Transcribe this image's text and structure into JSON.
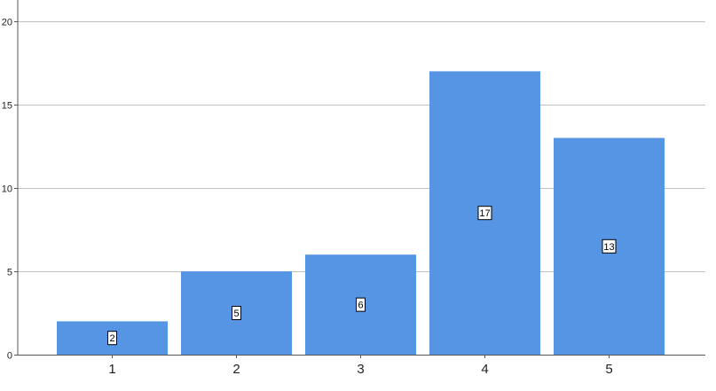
{
  "chart_data": {
    "type": "bar",
    "categories": [
      "1",
      "2",
      "3",
      "4",
      "5"
    ],
    "values": [
      2,
      5,
      6,
      17,
      13
    ],
    "data_labels": [
      "2",
      "5",
      "6",
      "17",
      "13"
    ],
    "yticks": [
      "0",
      "5",
      "10",
      "15",
      "20"
    ],
    "ylim": [
      0,
      20
    ],
    "grid": true,
    "bar_color": "#5595e3",
    "grid_color": "#c0c0c0"
  }
}
